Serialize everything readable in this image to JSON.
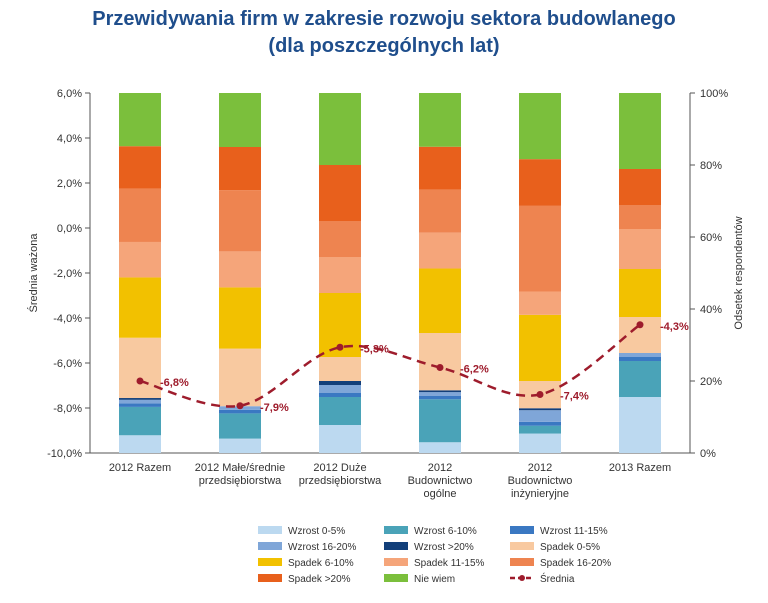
{
  "chart_data": {
    "type": "bar",
    "title": "Przewidywania firm w zakresie rozwoju sektora budowlanego",
    "subtitle": "(dla poszczególnych lat)",
    "ylabel_left": "Średnia ważona",
    "ylabel_right": "Odsetek respondentów",
    "ylim_left": [
      -10,
      6
    ],
    "ylim_right": [
      0,
      100
    ],
    "left_ticks": [
      "6,0%",
      "4,0%",
      "2,0%",
      "0,0%",
      "-2,0%",
      "-4,0%",
      "-6,0%",
      "-8,0%",
      "-10,0%"
    ],
    "right_ticks": [
      "100%",
      "80%",
      "60%",
      "40%",
      "20%",
      "0%"
    ],
    "categories": [
      [
        "2012 Razem"
      ],
      [
        "2012 Małe/średnie",
        "przedsiębiorstwa"
      ],
      [
        "2012 Duże",
        "przedsiębiorstwa"
      ],
      [
        "2012",
        "Budownictwo",
        "ogólne"
      ],
      [
        "2012",
        "Budownictwo",
        "inżynieryjne"
      ],
      [
        "2013 Razem"
      ]
    ],
    "series": [
      {
        "name": "Wzrost 0-5%",
        "color": "#bcd9f0",
        "values": [
          5,
          4,
          7,
          3,
          5,
          14
        ]
      },
      {
        "name": "Wzrost 6-10%",
        "color": "#4aa3b8",
        "values": [
          8,
          7,
          7,
          12,
          2,
          9
        ]
      },
      {
        "name": "Wzrost 11-15%",
        "color": "#3a78c2",
        "values": [
          1,
          1,
          1,
          1,
          1,
          1
        ]
      },
      {
        "name": "Wzrost 16-20%",
        "color": "#7fa6d8",
        "values": [
          1,
          1,
          2,
          1,
          3,
          1
        ]
      },
      {
        "name": "Wzrost >20%",
        "color": "#123f7a",
        "values": [
          0.5,
          0,
          1,
          0.5,
          0.5,
          0
        ]
      },
      {
        "name": "Spadek 0-5%",
        "color": "#f8c9a0",
        "values": [
          17,
          16,
          6,
          16,
          7,
          9
        ]
      },
      {
        "name": "Spadek 6-10%",
        "color": "#f2c100",
        "values": [
          17,
          17,
          16,
          18,
          17,
          12
        ]
      },
      {
        "name": "Spadek 11-15%",
        "color": "#f5a57a",
        "values": [
          10,
          10,
          9,
          10,
          6,
          10
        ]
      },
      {
        "name": "Spadek 16-20%",
        "color": "#ee8450",
        "values": [
          15,
          17,
          9,
          12,
          22,
          6
        ]
      },
      {
        "name": "Spadek >20%",
        "color": "#e8601c",
        "values": [
          12,
          12,
          14,
          12,
          12,
          9
        ]
      },
      {
        "name": "Nie wiem",
        "color": "#7bbf3c",
        "values": [
          15,
          15,
          18,
          15,
          17,
          19
        ]
      }
    ],
    "line": {
      "name": "Średnia",
      "color": "#9e1c2c",
      "values": [
        -6.8,
        -7.9,
        -5.3,
        -6.2,
        -7.4,
        -4.3
      ],
      "labels": [
        "-6,8%",
        "-7,9%",
        "-5,3%",
        "-6,2%",
        "-7,4%",
        "-4,3%"
      ]
    },
    "legend_position": "bottom",
    "grid": false
  }
}
